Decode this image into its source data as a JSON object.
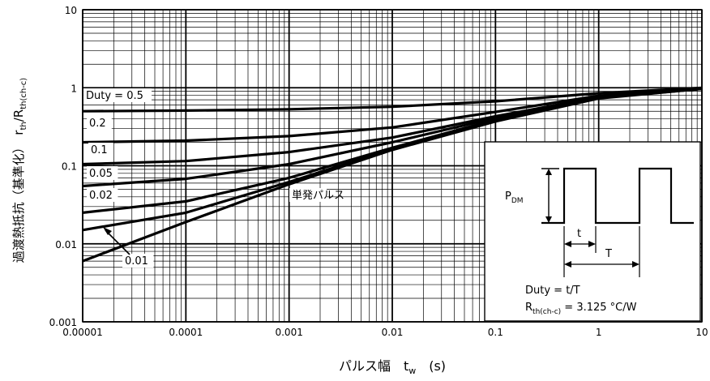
{
  "chart_data": {
    "type": "line",
    "title": "",
    "xlabel": {
      "pre": "パルス幅　t",
      "sub": "w",
      "post": "　(s)"
    },
    "ylabel": {
      "pre": "過渡熱抵抗（基準化）　r",
      "sub1": "th",
      "mid": "/R",
      "sub2": "th(ch-c)"
    },
    "xscale": "log",
    "yscale": "log",
    "xlim": [
      1e-05,
      10
    ],
    "ylim": [
      0.001,
      10
    ],
    "grid": "on",
    "x_ticks": [
      {
        "v": 1e-05,
        "label": "0.00001"
      },
      {
        "v": 0.0001,
        "label": "0.0001"
      },
      {
        "v": 0.001,
        "label": "0.001"
      },
      {
        "v": 0.01,
        "label": "0.01"
      },
      {
        "v": 0.1,
        "label": "0.1"
      },
      {
        "v": 1,
        "label": "1"
      },
      {
        "v": 10,
        "label": "10"
      }
    ],
    "y_ticks": [
      {
        "v": 0.001,
        "label": "0.001"
      },
      {
        "v": 0.01,
        "label": "0.01"
      },
      {
        "v": 0.1,
        "label": "0.1"
      },
      {
        "v": 1,
        "label": "1"
      },
      {
        "v": 10,
        "label": "10"
      }
    ],
    "series": [
      {
        "name": "Duty = 0.5",
        "x": [
          1e-05,
          0.0001,
          0.001,
          0.01,
          0.1,
          1,
          10
        ],
        "y": [
          0.5,
          0.51,
          0.53,
          0.57,
          0.67,
          0.85,
          1.0
        ]
      },
      {
        "name": "0.2",
        "x": [
          1e-05,
          0.0001,
          0.001,
          0.01,
          0.1,
          1,
          10
        ],
        "y": [
          0.2,
          0.21,
          0.24,
          0.31,
          0.49,
          0.79,
          0.99
        ]
      },
      {
        "name": "0.1",
        "x": [
          1e-05,
          0.0001,
          0.001,
          0.01,
          0.1,
          1,
          10
        ],
        "y": [
          0.105,
          0.115,
          0.15,
          0.23,
          0.43,
          0.76,
          0.98
        ]
      },
      {
        "name": "0.05",
        "x": [
          1e-05,
          0.0001,
          0.001,
          0.01,
          0.1,
          1,
          10
        ],
        "y": [
          0.055,
          0.068,
          0.105,
          0.2,
          0.41,
          0.75,
          0.97
        ]
      },
      {
        "name": "0.02",
        "x": [
          1e-05,
          0.0001,
          0.001,
          0.01,
          0.1,
          1,
          10
        ],
        "y": [
          0.025,
          0.035,
          0.07,
          0.17,
          0.39,
          0.74,
          0.97
        ]
      },
      {
        "name": "0.01",
        "x": [
          1e-05,
          0.0001,
          0.001,
          0.01,
          0.1,
          1,
          10
        ],
        "y": [
          0.015,
          0.025,
          0.062,
          0.165,
          0.38,
          0.74,
          0.97
        ]
      },
      {
        "name": "単発パルス",
        "x": [
          1e-05,
          0.0001,
          0.001,
          0.01,
          0.1,
          1,
          10
        ],
        "y": [
          0.006,
          0.019,
          0.058,
          0.16,
          0.37,
          0.73,
          0.97
        ]
      }
    ],
    "inset": {
      "pdm": {
        "pre": "P",
        "sub": "DM"
      },
      "t": "t",
      "T": "T",
      "duty_formula": "Duty = t/T",
      "rth": {
        "pre": "R",
        "sub": "th(ch-c)",
        "post": " = 3.125 °C/W"
      }
    }
  }
}
